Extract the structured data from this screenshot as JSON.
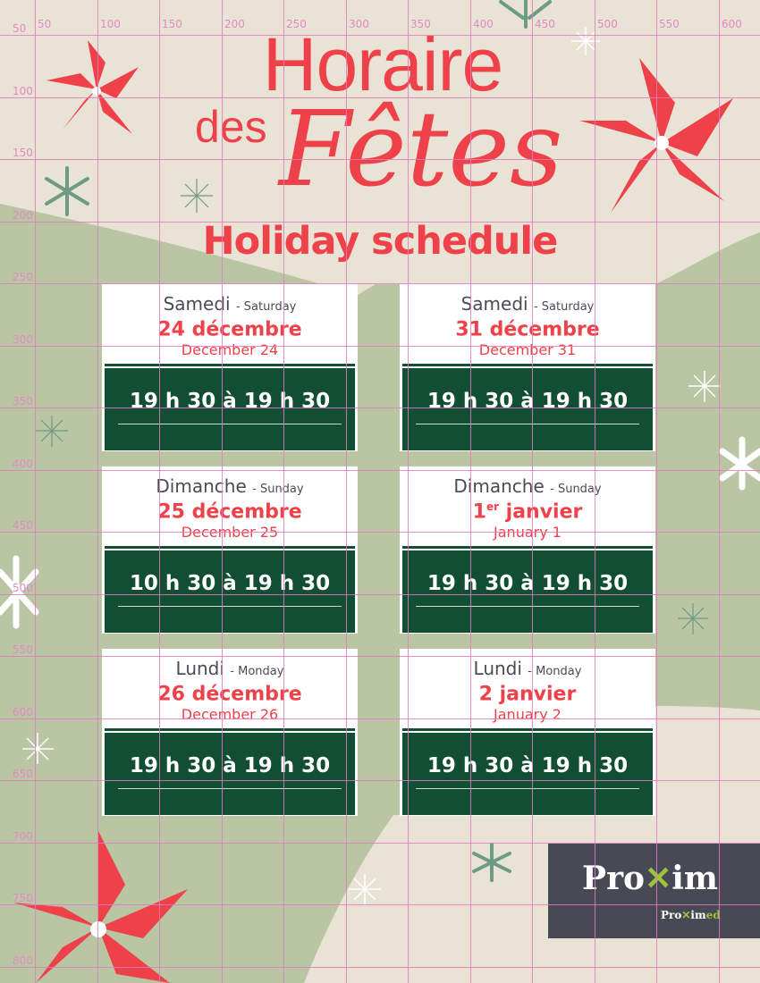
{
  "title": {
    "line1": "Horaire",
    "line2a": "des",
    "line2b": "Fêtes",
    "english": "Holiday schedule"
  },
  "schedule": [
    {
      "day_fr": "Samedi",
      "day_en": "- Saturday",
      "date_fr": "24 décembre",
      "date_fr_sup": "",
      "date_fr_rest": "",
      "date_en": "December 24",
      "hours": "19 h 30 à 19 h 30"
    },
    {
      "day_fr": "Samedi",
      "day_en": "- Saturday",
      "date_fr": "31 décembre",
      "date_fr_sup": "",
      "date_fr_rest": "",
      "date_en": "December 31",
      "hours": "19 h 30 à 19 h 30"
    },
    {
      "day_fr": "Dimanche",
      "day_en": "- Sunday",
      "date_fr": "25 décembre",
      "date_fr_sup": "",
      "date_fr_rest": "",
      "date_en": "December 25",
      "hours": "10 h 30 à 19 h 30"
    },
    {
      "day_fr": "Dimanche",
      "day_en": "- Sunday",
      "date_fr": "1",
      "date_fr_sup": "er",
      "date_fr_rest": " janvier",
      "date_en": "January 1",
      "hours": "19 h 30 à 19 h 30"
    },
    {
      "day_fr": "Lundi",
      "day_en": "- Monday",
      "date_fr": "26 décembre",
      "date_fr_sup": "",
      "date_fr_rest": "",
      "date_en": "December 26",
      "hours": "19 h 30 à 19 h 30"
    },
    {
      "day_fr": "Lundi",
      "day_en": "- Monday",
      "date_fr": "2 janvier",
      "date_fr_sup": "",
      "date_fr_rest": "",
      "date_en": "January 2",
      "hours": "19 h 30 à 19 h 30"
    }
  ],
  "logo": {
    "brand": "Proxim",
    "sub_brand": "Proximed"
  },
  "grid": {
    "top_labels": [
      "50",
      "100",
      "150",
      "200",
      "250",
      "300",
      "350",
      "400",
      "450",
      "500",
      "550",
      "600"
    ],
    "left_labels": [
      "50",
      "100",
      "150",
      "200",
      "250",
      "300",
      "350",
      "400",
      "450",
      "500",
      "550",
      "600",
      "650",
      "700",
      "750",
      "800"
    ]
  },
  "colors": {
    "background": "#e9e3d6",
    "green_shape": "#bac5a4",
    "accent_red": "#ee4149",
    "hours_green": "#114e33",
    "logo_bg": "#474a54",
    "logo_green": "#9dc43c",
    "grid": "#e07cc0"
  }
}
